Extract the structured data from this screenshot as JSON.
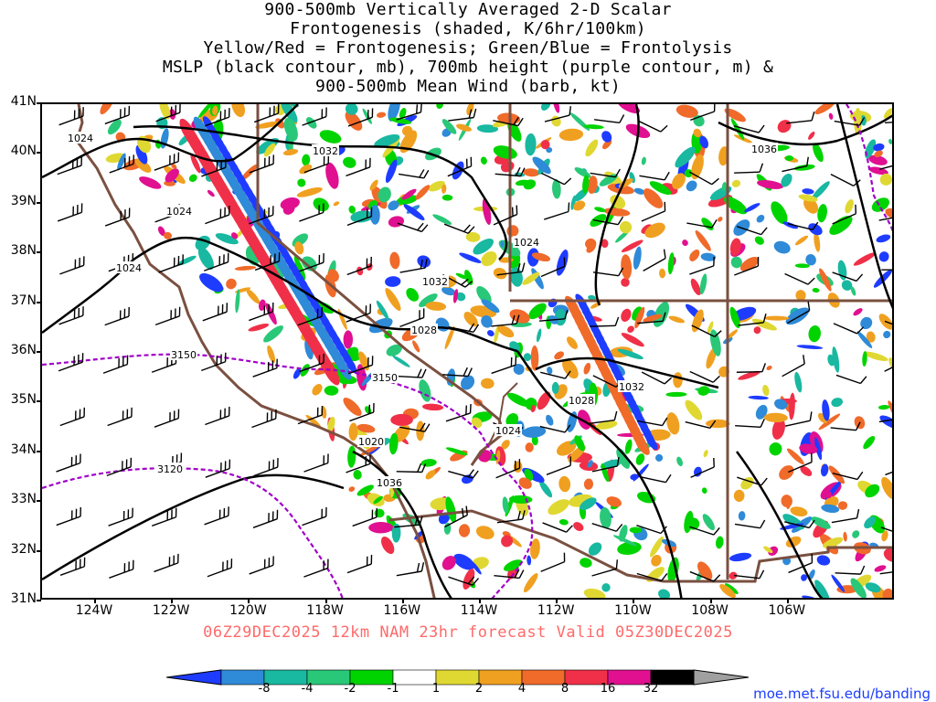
{
  "title": {
    "lines": [
      "900-500mb Vertically Averaged 2-D Scalar",
      "Frontogenesis (shaded, K/6hr/100km)",
      "Yellow/Red = Frontogenesis;  Green/Blue = Frontolysis",
      "MSLP (black contour, mb), 700mb height (purple contour, m) &",
      "900-500mb Mean Wind (barb, kt)"
    ]
  },
  "valid_text": "06Z29DEC2025 12km NAM 23hr forecast Valid 05Z30DEC2025",
  "valid_color": "#ff6a6a",
  "credit": {
    "text": "moe.met.fsu.edu/banding",
    "color": "#1a3cff"
  },
  "lat_labels": [
    "41N",
    "40N",
    "39N",
    "38N",
    "37N",
    "36N",
    "35N",
    "34N",
    "33N",
    "32N",
    "31N"
  ],
  "lon_labels": [
    "124W",
    "122W",
    "120W",
    "118W",
    "116W",
    "114W",
    "112W",
    "110W",
    "108W",
    "106W"
  ],
  "mslp_contour_labels": [
    "1024",
    "1032",
    "1024",
    "1024",
    "1032",
    "1036",
    "1028",
    "1028",
    "1032",
    "1024",
    "1020",
    "1036",
    "1024"
  ],
  "height_contour_labels": [
    "3150",
    "3150",
    "3120"
  ],
  "colorbar": {
    "labels": [
      "-8",
      "-4",
      "-2",
      "-1",
      "1",
      "2",
      "4",
      "8",
      "16",
      "32"
    ],
    "colors": [
      "#1e3cff",
      "#2f8ad8",
      "#19b8a0",
      "#28c878",
      "#00d400",
      "#ffffff",
      "#e0d832",
      "#f0a020",
      "#f06a2a",
      "#f03048",
      "#e01090",
      "#000000",
      "#a0a0a0"
    ]
  },
  "colors": {
    "mslp": "#000000",
    "height": "#a000c8",
    "borders": "#7a5040"
  }
}
